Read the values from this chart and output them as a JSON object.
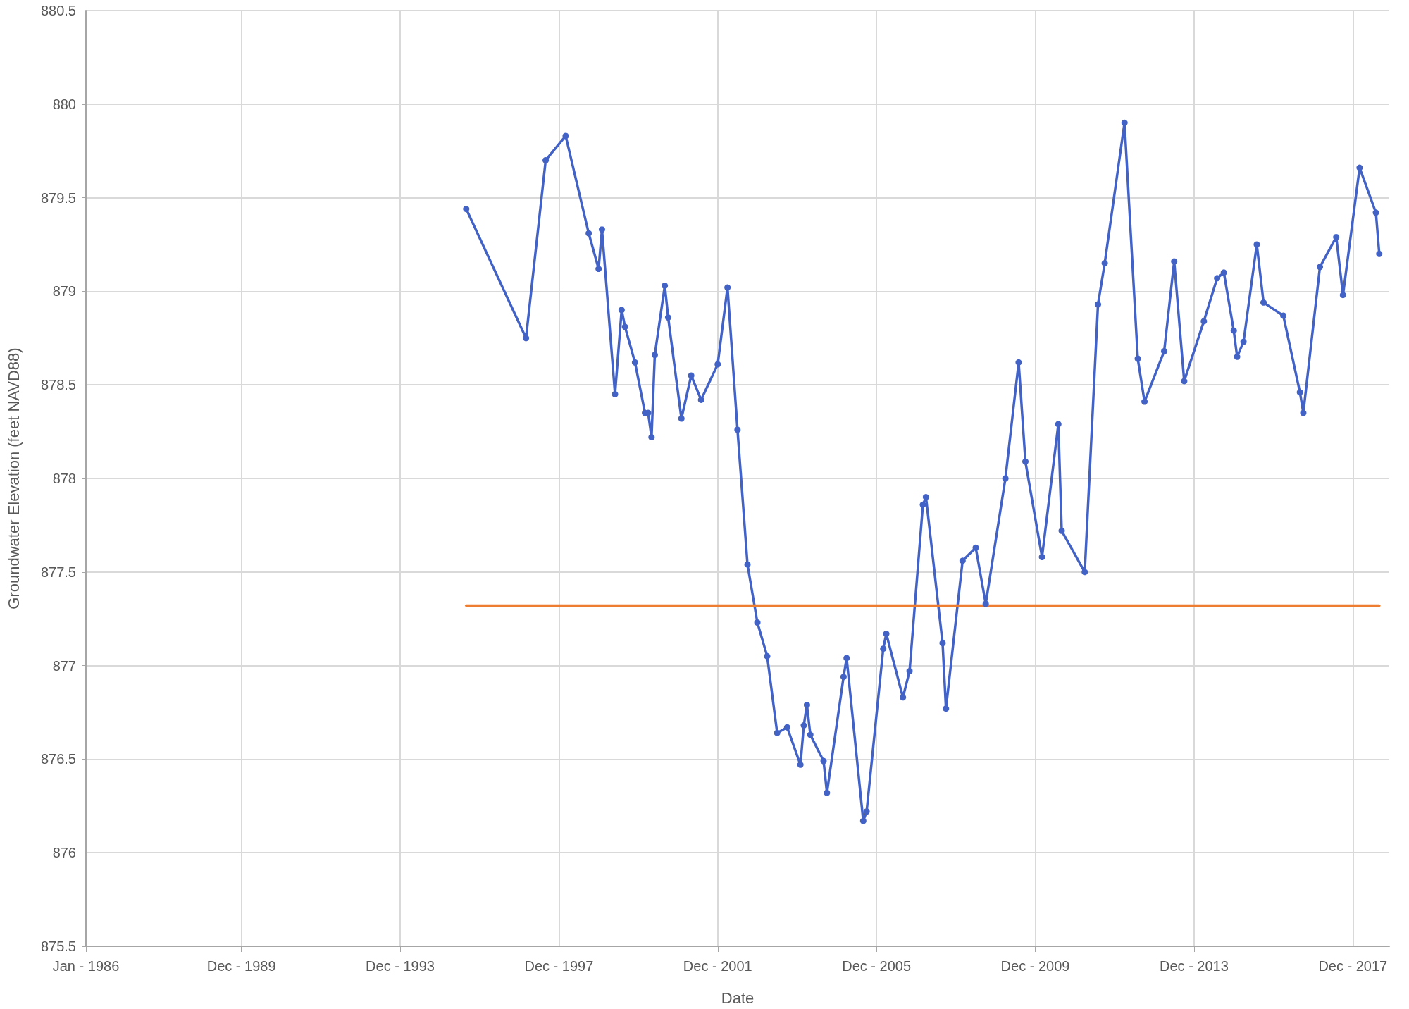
{
  "chart_data": {
    "type": "line",
    "xlabel": "Date",
    "ylabel": "Groundwater Elevation (feet NAVD88)",
    "xlim": [
      "1986-01",
      "2018-11"
    ],
    "xticks": [
      {
        "value": "1986-01",
        "label": "Jan - 1986"
      },
      {
        "value": "1989-12",
        "label": "Dec - 1989"
      },
      {
        "value": "1993-12",
        "label": "Dec - 1993"
      },
      {
        "value": "1997-12",
        "label": "Dec - 1997"
      },
      {
        "value": "2001-12",
        "label": "Dec - 2001"
      },
      {
        "value": "2005-12",
        "label": "Dec - 2005"
      },
      {
        "value": "2009-12",
        "label": "Dec - 2009"
      },
      {
        "value": "2013-12",
        "label": "Dec - 2013"
      },
      {
        "value": "2017-12",
        "label": "Dec - 2017"
      }
    ],
    "ylim": [
      875.5,
      880.5
    ],
    "yticks": [
      875.5,
      876,
      876.5,
      877,
      877.5,
      878,
      878.5,
      879,
      879.5,
      880,
      880.5
    ],
    "grid": true,
    "marker": "circle",
    "line_style": "solid",
    "series": [
      {
        "color": "#4262c6",
        "x": [
          "1995-08",
          "1997-02",
          "1997-08",
          "1998-02",
          "1998-09",
          "1998-12",
          "1999-01",
          "1999-05",
          "1999-07",
          "1999-08",
          "1999-11",
          "2000-02",
          "2000-03",
          "2000-04",
          "2000-05",
          "2000-08",
          "2000-09",
          "2001-01",
          "2001-04",
          "2001-07",
          "2001-12",
          "2002-03",
          "2002-06",
          "2002-09",
          "2002-12",
          "2003-03",
          "2003-06",
          "2003-09",
          "2004-01",
          "2004-02",
          "2004-03",
          "2004-04",
          "2004-08",
          "2004-09",
          "2005-02",
          "2005-03",
          "2005-08",
          "2005-09",
          "2006-02",
          "2006-03",
          "2006-08",
          "2006-10",
          "2007-02",
          "2007-03",
          "2007-08",
          "2007-09",
          "2008-02",
          "2008-06",
          "2008-09",
          "2009-03",
          "2009-07",
          "2009-09",
          "2010-02",
          "2010-07",
          "2010-08",
          "2011-03",
          "2011-07",
          "2011-09",
          "2012-03",
          "2012-07",
          "2012-09",
          "2013-03",
          "2013-06",
          "2013-09",
          "2014-03",
          "2014-07",
          "2014-09",
          "2014-12",
          "2015-01",
          "2015-03",
          "2015-07",
          "2015-09",
          "2016-03",
          "2016-08",
          "2016-09",
          "2017-02",
          "2017-07",
          "2017-09",
          "2018-02",
          "2018-07",
          "2018-08"
        ],
        "values": [
          879.44,
          878.75,
          879.7,
          879.83,
          879.31,
          879.12,
          879.33,
          878.45,
          878.9,
          878.81,
          878.62,
          878.35,
          878.35,
          878.22,
          878.66,
          879.03,
          878.86,
          878.32,
          878.55,
          878.42,
          878.61,
          879.02,
          878.26,
          877.54,
          877.23,
          877.05,
          876.64,
          876.67,
          876.47,
          876.68,
          876.79,
          876.63,
          876.49,
          876.32,
          876.94,
          877.04,
          876.17,
          876.22,
          877.09,
          877.17,
          876.83,
          876.97,
          877.86,
          877.9,
          877.12,
          876.77,
          877.56,
          877.63,
          877.33,
          878,
          878.62,
          878.09,
          877.58,
          878.29,
          877.72,
          877.5,
          878.93,
          879.15,
          879.9,
          878.64,
          878.41,
          878.68,
          879.16,
          878.52,
          878.84,
          879.07,
          879.1,
          878.79,
          878.65,
          878.73,
          879.25,
          878.94,
          878.87,
          878.46,
          878.35,
          879.13,
          879.29,
          878.98,
          879.66,
          879.42,
          879.2
        ]
      },
      {
        "color": "#ed7d31",
        "marker": "none",
        "x": [
          "1995-08",
          "2018-08"
        ],
        "values": [
          877.32,
          877.32
        ]
      }
    ]
  }
}
